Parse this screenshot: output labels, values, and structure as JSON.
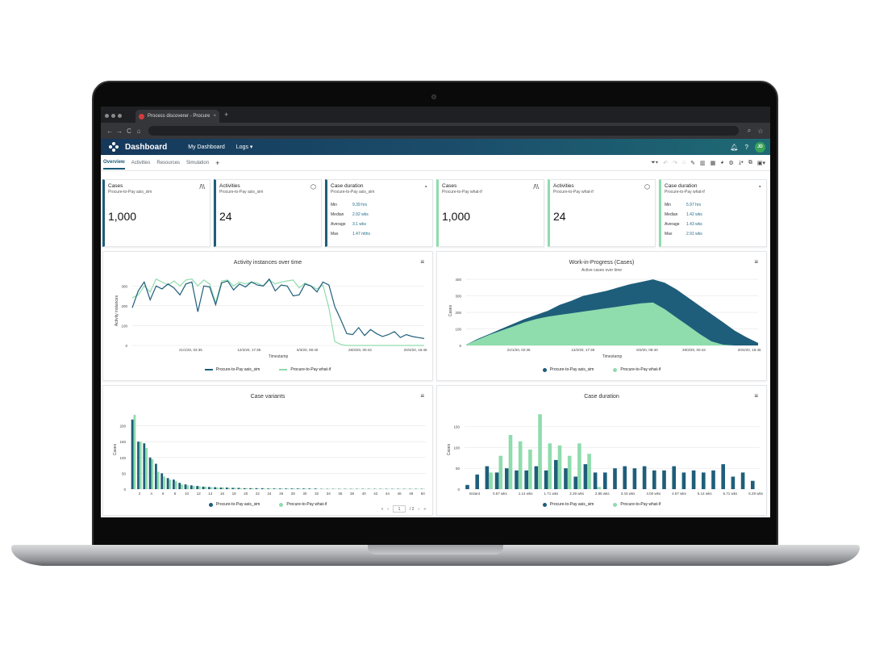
{
  "browser": {
    "tab_title": "Process discoverer - Procure",
    "tab_close": "×",
    "new_tab": "+",
    "nav": [
      "←",
      "→",
      "C",
      "⌂"
    ]
  },
  "app": {
    "title": "Dashboard",
    "nav_my_dashboard": "My Dashboard",
    "nav_logs": "Logs ▾",
    "avatar": "JD",
    "tabs": [
      "Overview",
      "Activities",
      "Resources",
      "Simulation"
    ],
    "add_tab": "+"
  },
  "colors": {
    "dark": "#1e5e7a",
    "light": "#8fdcad"
  },
  "kpis": [
    {
      "title": "Cases",
      "subtitle": "Procure-to-Pay asis_sim",
      "value": "1,000",
      "icon": "road-icon",
      "variant": "dark"
    },
    {
      "title": "Activities",
      "subtitle": "Procure-to-Pay asis_sim",
      "value": "24",
      "icon": "cube-icon",
      "variant": "dark"
    },
    {
      "title": "Case duration",
      "subtitle": "Procure-to-Pay asis_sim",
      "icon": "dashboard-icon",
      "variant": "dark",
      "stats": [
        {
          "k": "Min",
          "v": "9.39 hrs"
        },
        {
          "k": "Median",
          "v": "2.92 wks"
        },
        {
          "k": "Average",
          "v": "3.1 wks"
        },
        {
          "k": "Max",
          "v": "1.47 mths"
        }
      ]
    },
    {
      "title": "Cases",
      "subtitle": "Procure-to-Pay what-if",
      "value": "1,000",
      "icon": "road-icon",
      "variant": "green"
    },
    {
      "title": "Activities",
      "subtitle": "Procure-to-Pay what-if",
      "value": "24",
      "icon": "cube-icon",
      "variant": "green"
    },
    {
      "title": "Case duration",
      "subtitle": "Procure-to-Pay what-if",
      "icon": "dashboard-icon",
      "variant": "green",
      "stats": [
        {
          "k": "Min",
          "v": "5.97 hrs"
        },
        {
          "k": "Median",
          "v": "1.42 wks"
        },
        {
          "k": "Average",
          "v": "1.43 wks"
        },
        {
          "k": "Max",
          "v": "2.91 wks"
        }
      ]
    }
  ],
  "legend": {
    "a": "Procure-to-Pay asis_sim",
    "b": "Procure-to-Pay what-if"
  },
  "pager": {
    "page": "1",
    "total": "/ 2"
  },
  "chart_data": [
    {
      "type": "line",
      "title": "Activity instances over time",
      "xlabel": "Timestamp",
      "ylabel": "Activity instances",
      "ylim": [
        0,
        350
      ],
      "yticks": [
        0,
        100,
        200,
        300
      ],
      "xticks": [
        "21/1/20, 02:35",
        "12/2/20, 17:38",
        "6/3/20, 08:40",
        "28/3/20, 00:43",
        "20/4/20, 16:46"
      ],
      "series": [
        {
          "name": "Procure-to-Pay asis_sim",
          "values": [
            190,
            275,
            320,
            230,
            300,
            285,
            310,
            290,
            255,
            310,
            320,
            170,
            300,
            295,
            205,
            315,
            325,
            280,
            310,
            295,
            320,
            305,
            300,
            335,
            275,
            305,
            300,
            250,
            255,
            310,
            300,
            270,
            320,
            305,
            195,
            130,
            60,
            55,
            90,
            50,
            80,
            60,
            45,
            55,
            70,
            40,
            55,
            45,
            40,
            35
          ]
        },
        {
          "name": "Procure-to-Pay what-if",
          "values": [
            240,
            255,
            300,
            270,
            335,
            320,
            305,
            325,
            300,
            330,
            335,
            300,
            330,
            310,
            215,
            325,
            330,
            300,
            320,
            310,
            320,
            315,
            300,
            330,
            310,
            320,
            325,
            330,
            290,
            315,
            300,
            285,
            305,
            190,
            20,
            5,
            0,
            0,
            0,
            0,
            0,
            0,
            0,
            0,
            0,
            0,
            0,
            0,
            0,
            0
          ]
        }
      ]
    },
    {
      "type": "area",
      "title": "Work-in-Progress (Cases)",
      "subtitle": "Active cases over time",
      "ylabel": "Cases",
      "xlabel": "Timestamp",
      "ylim": [
        0,
        420
      ],
      "yticks": [
        0,
        100,
        200,
        300,
        400
      ],
      "xticks": [
        "21/1/20, 02:35",
        "12/2/20, 17:38",
        "6/3/20, 08:40",
        "29/3/20, 00:43",
        "20/4/20, 16:46"
      ],
      "series": [
        {
          "name": "Procure-to-Pay asis_sim",
          "values": [
            5,
            40,
            70,
            100,
            130,
            160,
            185,
            210,
            245,
            270,
            300,
            315,
            330,
            350,
            370,
            385,
            400,
            380,
            340,
            290,
            240,
            190,
            140,
            90,
            50,
            15
          ]
        },
        {
          "name": "Procure-to-Pay what-if",
          "values": [
            5,
            35,
            65,
            90,
            115,
            140,
            160,
            175,
            185,
            195,
            205,
            215,
            225,
            235,
            245,
            255,
            260,
            220,
            170,
            120,
            70,
            25,
            5,
            0,
            0,
            0
          ]
        }
      ]
    },
    {
      "type": "bar",
      "title": "Case variants",
      "ylabel": "Cases",
      "ylim": [
        0,
        250
      ],
      "yticks": [
        0,
        50,
        100,
        150,
        200
      ],
      "xticks": [
        "2",
        "4",
        "6",
        "8",
        "10",
        "12",
        "14",
        "16",
        "18",
        "20",
        "22",
        "24",
        "26",
        "28",
        "30",
        "32",
        "34",
        "36",
        "38",
        "40",
        "42",
        "44",
        "46",
        "48",
        "50"
      ],
      "series": [
        {
          "name": "Procure-to-Pay asis_sim",
          "values": [
            220,
            150,
            145,
            100,
            80,
            50,
            35,
            30,
            20,
            15,
            12,
            10,
            8,
            7,
            6,
            5,
            5,
            4,
            4,
            3,
            3,
            3,
            3,
            2,
            2,
            2,
            2,
            2,
            2,
            2,
            2,
            2,
            1,
            1,
            1,
            1,
            1,
            1,
            1,
            1,
            1,
            1,
            1,
            1,
            1,
            1,
            1,
            1,
            1,
            1
          ]
        },
        {
          "name": "Procure-to-Pay what-if",
          "values": [
            235,
            150,
            130,
            95,
            55,
            40,
            30,
            25,
            15,
            12,
            10,
            9,
            8,
            6,
            5,
            5,
            4,
            4,
            3,
            3,
            3,
            2,
            2,
            2,
            2,
            2,
            2,
            2,
            2,
            2,
            1,
            1,
            1,
            1,
            1,
            1,
            1,
            1,
            1,
            1,
            1,
            1,
            1,
            1,
            1,
            1,
            1,
            1,
            1,
            1
          ]
        }
      ]
    },
    {
      "type": "bar",
      "title": "Case duration",
      "ylabel": "Cases",
      "ylim": [
        0,
        190
      ],
      "yticks": [
        0,
        50,
        100,
        150
      ],
      "xticks": [
        "Instant",
        "0.57 wks",
        "1.14 wks",
        "1.71 wks",
        "2.29 wks",
        "2.86 wks",
        "3.43 wks",
        "4.00 wks",
        "4.57 wks",
        "5.14 wks",
        "5.71 wks",
        "6.29 wks"
      ],
      "series": [
        {
          "name": "Procure-to-Pay asis_sim",
          "values": [
            10,
            35,
            55,
            40,
            50,
            45,
            45,
            55,
            45,
            70,
            50,
            30,
            60,
            40,
            40,
            50,
            55,
            50,
            55,
            45,
            45,
            55,
            40,
            45,
            40,
            45,
            60,
            30,
            40,
            20
          ]
        },
        {
          "name": "Procure-to-Pay what-if",
          "values": [
            0,
            0,
            40,
            80,
            130,
            115,
            95,
            180,
            110,
            105,
            80,
            110,
            85,
            5,
            0,
            0,
            0,
            0,
            0,
            0,
            0,
            0,
            0,
            0,
            0,
            0,
            0,
            0,
            0,
            0
          ]
        }
      ]
    }
  ]
}
